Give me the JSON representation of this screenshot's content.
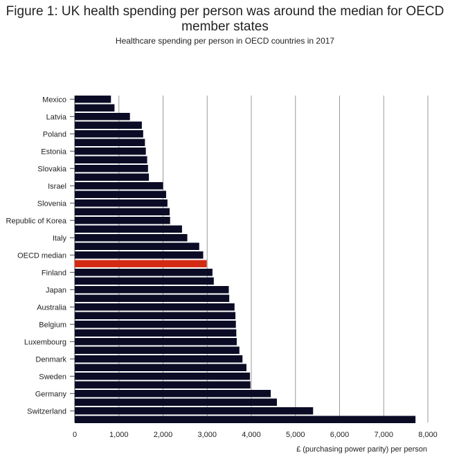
{
  "chart_data": {
    "type": "bar",
    "orientation": "horizontal",
    "title": "Figure 1: UK health spending per person was around the median for OECD member states",
    "subtitle": "Healthcare spending per person in OECD countries in 2017",
    "xlabel": "£ (purchasing power parity) per person",
    "ylabel": "",
    "xlim": [
      0,
      8000
    ],
    "xticks": [
      0,
      1000,
      2000,
      3000,
      4000,
      5000,
      6000,
      7000,
      8000
    ],
    "xtick_labels": [
      "0",
      "1,000",
      "2,000",
      "3,000",
      "4,000",
      "5,000",
      "6,000",
      "7,000",
      "8,000"
    ],
    "grid": "vertical",
    "legend": "none",
    "bar_color": "#0b0b26",
    "highlight_color": "#d42a14",
    "highlight_index": 19,
    "categories": [
      "Mexico",
      "",
      "Latvia",
      "",
      "Poland",
      "",
      "Estonia",
      "",
      "Slovakia",
      "",
      "Israel",
      "",
      "Slovenia",
      "",
      "Republic of Korea",
      "",
      "Italy",
      "",
      "OECD median",
      "",
      "Finland",
      "",
      "Japan",
      "",
      "Australia",
      "",
      "Belgium",
      "",
      "Luxembourg",
      "",
      "Denmark",
      "",
      "Sweden",
      "",
      "Germany",
      "",
      "Switzerland",
      ""
    ],
    "values": [
      820,
      900,
      1250,
      1520,
      1550,
      1590,
      1610,
      1640,
      1660,
      1680,
      2000,
      2070,
      2100,
      2150,
      2160,
      2430,
      2550,
      2820,
      2910,
      2990,
      3120,
      3150,
      3490,
      3500,
      3620,
      3640,
      3650,
      3660,
      3670,
      3730,
      3800,
      3890,
      3970,
      3980,
      4440,
      4580,
      5400,
      7720
    ]
  }
}
